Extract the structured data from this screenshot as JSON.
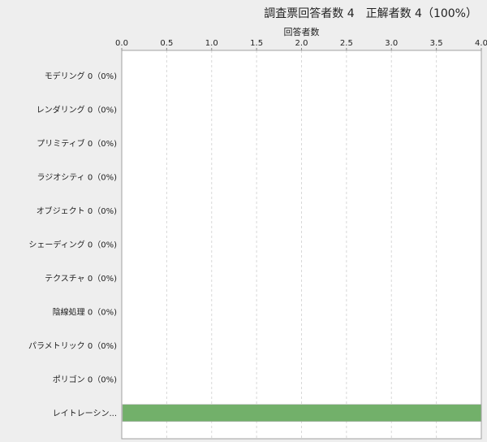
{
  "chart_data": {
    "type": "bar",
    "orientation": "horizontal",
    "title": "調査票回答者数 4　正解者数 4（100%）",
    "xlabel": "回答者数",
    "ylabel": "",
    "xlim": [
      0,
      4
    ],
    "x_ticks": [
      "0.0",
      "0.5",
      "1.0",
      "1.5",
      "2.0",
      "2.5",
      "3.0",
      "3.5",
      "4.0"
    ],
    "x_axis_position": "top",
    "grid": "vertical dashed",
    "categories": [
      "モデリング 0（0%)",
      "レンダリング 0（0%)",
      "プリミティブ 0（0%)",
      "ラジオシティ 0（0%)",
      "オブジェクト 0（0%)",
      "シェーディング 0（0%)",
      "テクスチャ 0（0%)",
      "陰線処理 0（0%)",
      "パラメトリック 0（0%)",
      "ポリゴン 0（0%)",
      "レイトレーシン..."
    ],
    "values": [
      0,
      0,
      0,
      0,
      0,
      0,
      0,
      0,
      0,
      0,
      4
    ],
    "bar_color": "#72b06a"
  }
}
